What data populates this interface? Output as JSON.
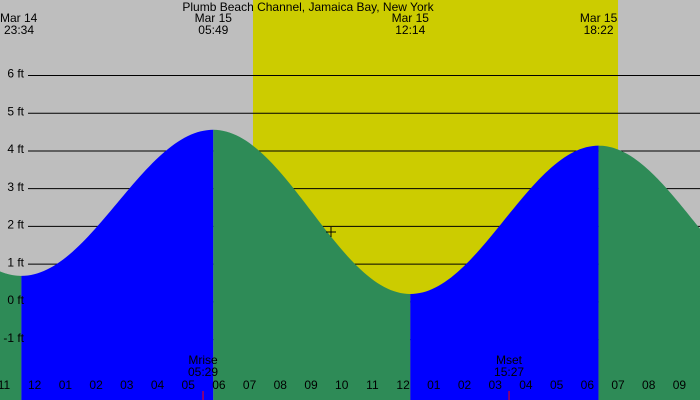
{
  "title": "Plumb Beach Channel, Jamaica Bay, New York",
  "chart": {
    "xlim": [
      22.87,
      45.67
    ],
    "ylim": [
      -2.6,
      8.0
    ],
    "yticks": [
      {
        "value": 6,
        "label": "6 ft"
      },
      {
        "value": 5,
        "label": "5 ft"
      },
      {
        "value": 4,
        "label": "4 ft"
      },
      {
        "value": 3,
        "label": "3 ft"
      },
      {
        "value": 2,
        "label": "2 ft"
      },
      {
        "value": 1,
        "label": "1 ft"
      },
      {
        "value": 0,
        "label": "0 ft"
      },
      {
        "value": -1,
        "label": "-1 ft"
      }
    ],
    "xticks": [
      {
        "value": 23,
        "label": "11"
      },
      {
        "value": 24,
        "label": "12"
      },
      {
        "value": 25,
        "label": "01"
      },
      {
        "value": 26,
        "label": "02"
      },
      {
        "value": 27,
        "label": "03"
      },
      {
        "value": 28,
        "label": "04"
      },
      {
        "value": 29,
        "label": "05"
      },
      {
        "value": 30,
        "label": "06"
      },
      {
        "value": 31,
        "label": "07"
      },
      {
        "value": 32,
        "label": "08"
      },
      {
        "value": 33,
        "label": "09"
      },
      {
        "value": 34,
        "label": "10"
      },
      {
        "value": 35,
        "label": "11"
      },
      {
        "value": 36,
        "label": "12"
      },
      {
        "value": 37,
        "label": "01"
      },
      {
        "value": 38,
        "label": "02"
      },
      {
        "value": 39,
        "label": "03"
      },
      {
        "value": 40,
        "label": "04"
      },
      {
        "value": 41,
        "label": "05"
      },
      {
        "value": 42,
        "label": "06"
      },
      {
        "value": 43,
        "label": "07"
      },
      {
        "value": 44,
        "label": "08"
      },
      {
        "value": 45,
        "label": "09"
      }
    ],
    "daylight": [
      31.11,
      43.0
    ],
    "colors": {
      "background": "#bebebe",
      "daylight": "#cccc00",
      "rising": "#0000ff",
      "falling": "#2e8b57",
      "moon": "#ff0000"
    }
  },
  "tides": [
    {
      "date": "Mar 14",
      "time": "23:34",
      "hour": 23.567,
      "height": 0.69
    },
    {
      "date": "Mar 15",
      "time": "05:49",
      "hour": 29.817,
      "height": 4.56
    },
    {
      "date": "Mar 15",
      "time": "12:14",
      "hour": 36.233,
      "height": 0.21
    },
    {
      "date": "Mar 15",
      "time": "18:22",
      "hour": 42.367,
      "height": 4.14
    }
  ],
  "moon": [
    {
      "event": "Mrise",
      "time": "05:29",
      "hour": 29.483
    },
    {
      "event": "Mset",
      "time": "15:27",
      "hour": 39.45
    }
  ]
}
